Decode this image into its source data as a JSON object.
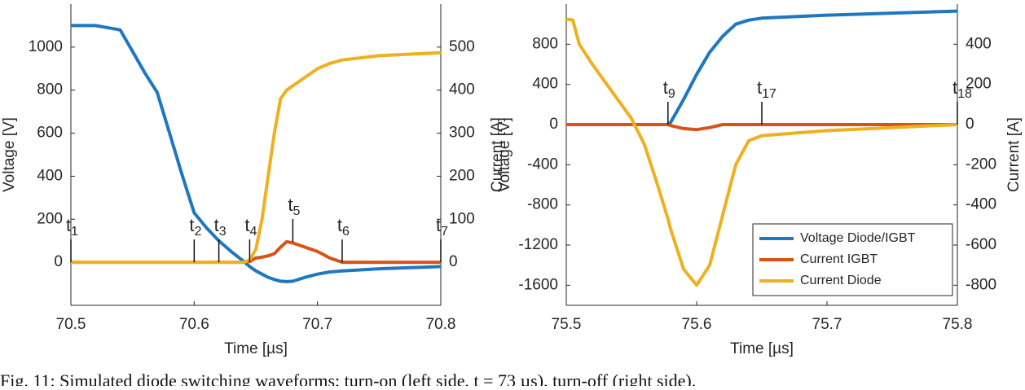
{
  "chart_data": [
    {
      "type": "line",
      "x_label": "Time [µs]",
      "y_label": "Voltage [V]",
      "y2_label": "Current [A]",
      "xlim": [
        70.5,
        70.8
      ],
      "xticks": [
        70.5,
        70.6,
        70.7,
        70.8
      ],
      "ylim": [
        -200,
        1200
      ],
      "yticks": [
        0,
        200,
        400,
        600,
        800,
        1000
      ],
      "y2lim": [
        -100,
        600
      ],
      "y2ticks": [
        0,
        100,
        200,
        300,
        400,
        500
      ],
      "x": [
        70.5,
        70.52,
        70.54,
        70.55,
        70.56,
        70.57,
        70.58,
        70.59,
        70.6,
        70.61,
        70.62,
        70.63,
        70.64,
        70.645,
        70.65,
        70.655,
        70.66,
        70.665,
        70.67,
        70.675,
        70.68,
        70.69,
        70.7,
        70.71,
        70.72,
        70.75,
        70.8
      ],
      "series": [
        {
          "color": "#1f77c0",
          "values": [
            1100,
            1100,
            1080,
            980,
            880,
            790,
            600,
            410,
            230,
            160,
            100,
            50,
            5,
            -20,
            -40,
            -55,
            -70,
            -80,
            -88,
            -90,
            -88,
            -70,
            -55,
            -45,
            -40,
            -30,
            -20
          ]
        },
        {
          "color": "#d95319",
          "axis": "y2",
          "values": [
            0,
            0,
            0,
            0,
            0,
            0,
            0,
            0,
            0,
            0,
            0,
            0,
            0,
            2,
            10,
            12,
            15,
            20,
            35,
            48,
            45,
            35,
            25,
            10,
            0,
            0,
            0
          ]
        },
        {
          "color": "#edb120",
          "axis": "y2",
          "values": [
            0,
            0,
            0,
            0,
            0,
            0,
            0,
            0,
            0,
            0,
            0,
            0,
            0,
            5,
            30,
            100,
            200,
            300,
            380,
            400,
            410,
            430,
            450,
            462,
            470,
            480,
            487
          ]
        }
      ],
      "annotations": [
        {
          "text": "t",
          "sub": "1",
          "x": 70.5,
          "y": 0
        },
        {
          "text": "t",
          "sub": "2",
          "x": 70.6,
          "y": 0
        },
        {
          "text": "t",
          "sub": "3",
          "x": 70.62,
          "y": 0
        },
        {
          "text": "t",
          "sub": "4",
          "x": 70.645,
          "y": 0
        },
        {
          "text": "t",
          "sub": "5",
          "x": 70.68,
          "y": 95
        },
        {
          "text": "t",
          "sub": "6",
          "x": 70.72,
          "y": 0
        },
        {
          "text": "t",
          "sub": "7",
          "x": 70.8,
          "y": 0
        }
      ]
    },
    {
      "type": "line",
      "x_label": "Time [µs]",
      "y_label": "Voltage [V]",
      "y2_label": "Current [A]",
      "xlim": [
        75.5,
        75.8
      ],
      "xticks": [
        75.5,
        75.6,
        75.7,
        75.8
      ],
      "ylim": [
        -1800,
        1200
      ],
      "yticks": [
        -1600,
        -1200,
        -800,
        -400,
        0,
        400,
        800
      ],
      "y2lim": [
        -900,
        600
      ],
      "y2ticks": [
        -800,
        -600,
        -400,
        -200,
        0,
        200,
        400
      ],
      "legend": "lower right",
      "x": [
        75.5,
        75.505,
        75.51,
        75.52,
        75.53,
        75.54,
        75.55,
        75.56,
        75.57,
        75.578,
        75.58,
        75.59,
        75.6,
        75.61,
        75.62,
        75.63,
        75.64,
        75.65,
        75.7,
        75.75,
        75.8
      ],
      "series": [
        {
          "name": "Voltage Diode/IGBT",
          "color": "#1f77c0",
          "values": [
            0,
            0,
            0,
            0,
            0,
            0,
            0,
            0,
            0,
            0,
            20,
            250,
            500,
            720,
            880,
            1000,
            1040,
            1060,
            1090,
            1110,
            1130
          ]
        },
        {
          "name": "Current IGBT",
          "color": "#d95319",
          "axis": "y2",
          "values": [
            0,
            0,
            0,
            0,
            0,
            0,
            0,
            0,
            0,
            0,
            -5,
            -20,
            -25,
            -15,
            0,
            0,
            0,
            0,
            0,
            0,
            0
          ]
        },
        {
          "name": "Current Diode",
          "color": "#edb120",
          "axis": "y2",
          "values": [
            525,
            520,
            400,
            300,
            210,
            120,
            30,
            -100,
            -300,
            -470,
            -520,
            -720,
            -800,
            -700,
            -450,
            -200,
            -80,
            -55,
            -30,
            -15,
            0
          ]
        }
      ],
      "annotations": [
        {
          "text": "t",
          "sub": "9",
          "x": 75.578,
          "y": 0
        },
        {
          "text": "t",
          "sub": "17",
          "x": 75.65,
          "y": 0
        },
        {
          "text": "t",
          "sub": "18",
          "x": 75.8,
          "y": 0
        }
      ]
    }
  ],
  "caption": "Fig. 11: Simulated diode switching waveforms: turn-on (left side, t = 73 µs), turn-off (right side)."
}
